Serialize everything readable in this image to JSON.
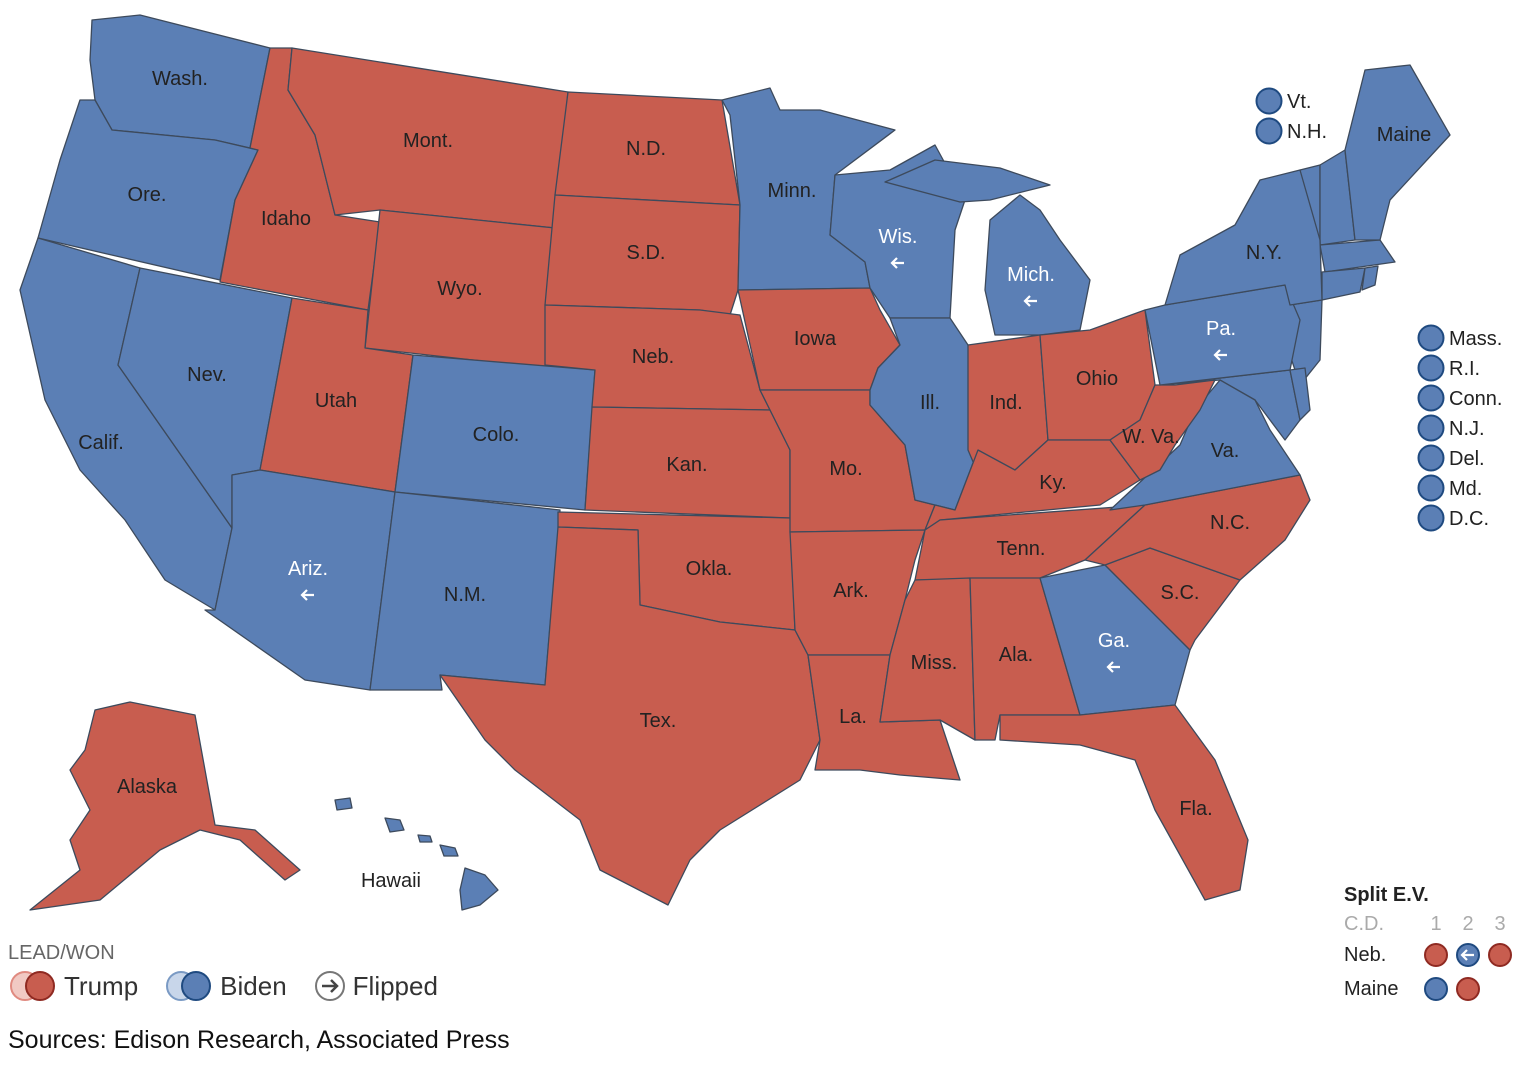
{
  "colors": {
    "trump": "#c85d4f",
    "biden": "#5b7fb5",
    "border": "#3d4a5c"
  },
  "states": [
    {
      "id": "wa",
      "label": "Wash.",
      "winner": "biden",
      "flipped": false
    },
    {
      "id": "or",
      "label": "Ore.",
      "winner": "biden",
      "flipped": false
    },
    {
      "id": "ca",
      "label": "Calif.",
      "winner": "biden",
      "flipped": false
    },
    {
      "id": "nv",
      "label": "Nev.",
      "winner": "biden",
      "flipped": false
    },
    {
      "id": "id",
      "label": "Idaho",
      "winner": "trump",
      "flipped": false
    },
    {
      "id": "mt",
      "label": "Mont.",
      "winner": "trump",
      "flipped": false
    },
    {
      "id": "wy",
      "label": "Wyo.",
      "winner": "trump",
      "flipped": false
    },
    {
      "id": "ut",
      "label": "Utah",
      "winner": "trump",
      "flipped": false
    },
    {
      "id": "co",
      "label": "Colo.",
      "winner": "biden",
      "flipped": false
    },
    {
      "id": "az",
      "label": "Ariz.",
      "winner": "biden",
      "flipped": true
    },
    {
      "id": "nm",
      "label": "N.M.",
      "winner": "biden",
      "flipped": false
    },
    {
      "id": "nd",
      "label": "N.D.",
      "winner": "trump",
      "flipped": false
    },
    {
      "id": "sd",
      "label": "S.D.",
      "winner": "trump",
      "flipped": false
    },
    {
      "id": "ne",
      "label": "Neb.",
      "winner": "trump",
      "flipped": false
    },
    {
      "id": "ks",
      "label": "Kan.",
      "winner": "trump",
      "flipped": false
    },
    {
      "id": "ok",
      "label": "Okla.",
      "winner": "trump",
      "flipped": false
    },
    {
      "id": "tx",
      "label": "Tex.",
      "winner": "trump",
      "flipped": false
    },
    {
      "id": "mn",
      "label": "Minn.",
      "winner": "biden",
      "flipped": false
    },
    {
      "id": "ia",
      "label": "Iowa",
      "winner": "trump",
      "flipped": false
    },
    {
      "id": "mo",
      "label": "Mo.",
      "winner": "trump",
      "flipped": false
    },
    {
      "id": "ar",
      "label": "Ark.",
      "winner": "trump",
      "flipped": false
    },
    {
      "id": "la",
      "label": "La.",
      "winner": "trump",
      "flipped": false
    },
    {
      "id": "wi",
      "label": "Wis.",
      "winner": "biden",
      "flipped": true
    },
    {
      "id": "il",
      "label": "Ill.",
      "winner": "biden",
      "flipped": false
    },
    {
      "id": "mi",
      "label": "Mich.",
      "winner": "biden",
      "flipped": true
    },
    {
      "id": "in",
      "label": "Ind.",
      "winner": "trump",
      "flipped": false
    },
    {
      "id": "oh",
      "label": "Ohio",
      "winner": "trump",
      "flipped": false
    },
    {
      "id": "ky",
      "label": "Ky.",
      "winner": "trump",
      "flipped": false
    },
    {
      "id": "tn",
      "label": "Tenn.",
      "winner": "trump",
      "flipped": false
    },
    {
      "id": "ms",
      "label": "Miss.",
      "winner": "trump",
      "flipped": false
    },
    {
      "id": "al",
      "label": "Ala.",
      "winner": "trump",
      "flipped": false
    },
    {
      "id": "ga",
      "label": "Ga.",
      "winner": "biden",
      "flipped": true
    },
    {
      "id": "fl",
      "label": "Fla.",
      "winner": "trump",
      "flipped": false
    },
    {
      "id": "sc",
      "label": "S.C.",
      "winner": "trump",
      "flipped": false
    },
    {
      "id": "nc",
      "label": "N.C.",
      "winner": "trump",
      "flipped": false
    },
    {
      "id": "va",
      "label": "Va.",
      "winner": "biden",
      "flipped": false
    },
    {
      "id": "wv",
      "label": "W. Va.",
      "winner": "trump",
      "flipped": false
    },
    {
      "id": "pa",
      "label": "Pa.",
      "winner": "biden",
      "flipped": true
    },
    {
      "id": "ny",
      "label": "N.Y.",
      "winner": "biden",
      "flipped": false
    },
    {
      "id": "me",
      "label": "Maine",
      "winner": "biden",
      "flipped": false
    },
    {
      "id": "ak",
      "label": "Alaska",
      "winner": "trump",
      "flipped": false
    },
    {
      "id": "hi",
      "label": "Hawaii",
      "winner": "biden",
      "flipped": false
    }
  ],
  "small_states": [
    {
      "id": "vt",
      "label": "Vt.",
      "winner": "biden"
    },
    {
      "id": "nh",
      "label": "N.H.",
      "winner": "biden"
    },
    {
      "id": "ma",
      "label": "Mass.",
      "winner": "biden"
    },
    {
      "id": "ri",
      "label": "R.I.",
      "winner": "biden"
    },
    {
      "id": "ct",
      "label": "Conn.",
      "winner": "biden"
    },
    {
      "id": "nj",
      "label": "N.J.",
      "winner": "biden"
    },
    {
      "id": "de",
      "label": "Del.",
      "winner": "biden"
    },
    {
      "id": "md",
      "label": "Md.",
      "winner": "biden"
    },
    {
      "id": "dc",
      "label": "D.C.",
      "winner": "biden"
    }
  ],
  "legend": {
    "title": "LEAD/WON",
    "trump": "Trump",
    "biden": "Biden",
    "flipped": "Flipped"
  },
  "sources": "Sources: Edison Research, Associated Press",
  "split_ev": {
    "title": "Split E.V.",
    "cd_label": "C.D.",
    "districts": [
      "1",
      "2",
      "3"
    ],
    "rows": [
      {
        "state": "Neb.",
        "results": [
          {
            "winner": "trump",
            "flipped": false
          },
          {
            "winner": "biden",
            "flipped": true
          },
          {
            "winner": "trump",
            "flipped": false
          }
        ]
      },
      {
        "state": "Maine",
        "results": [
          {
            "winner": "biden",
            "flipped": false
          },
          {
            "winner": "trump",
            "flipped": false
          }
        ]
      }
    ]
  }
}
